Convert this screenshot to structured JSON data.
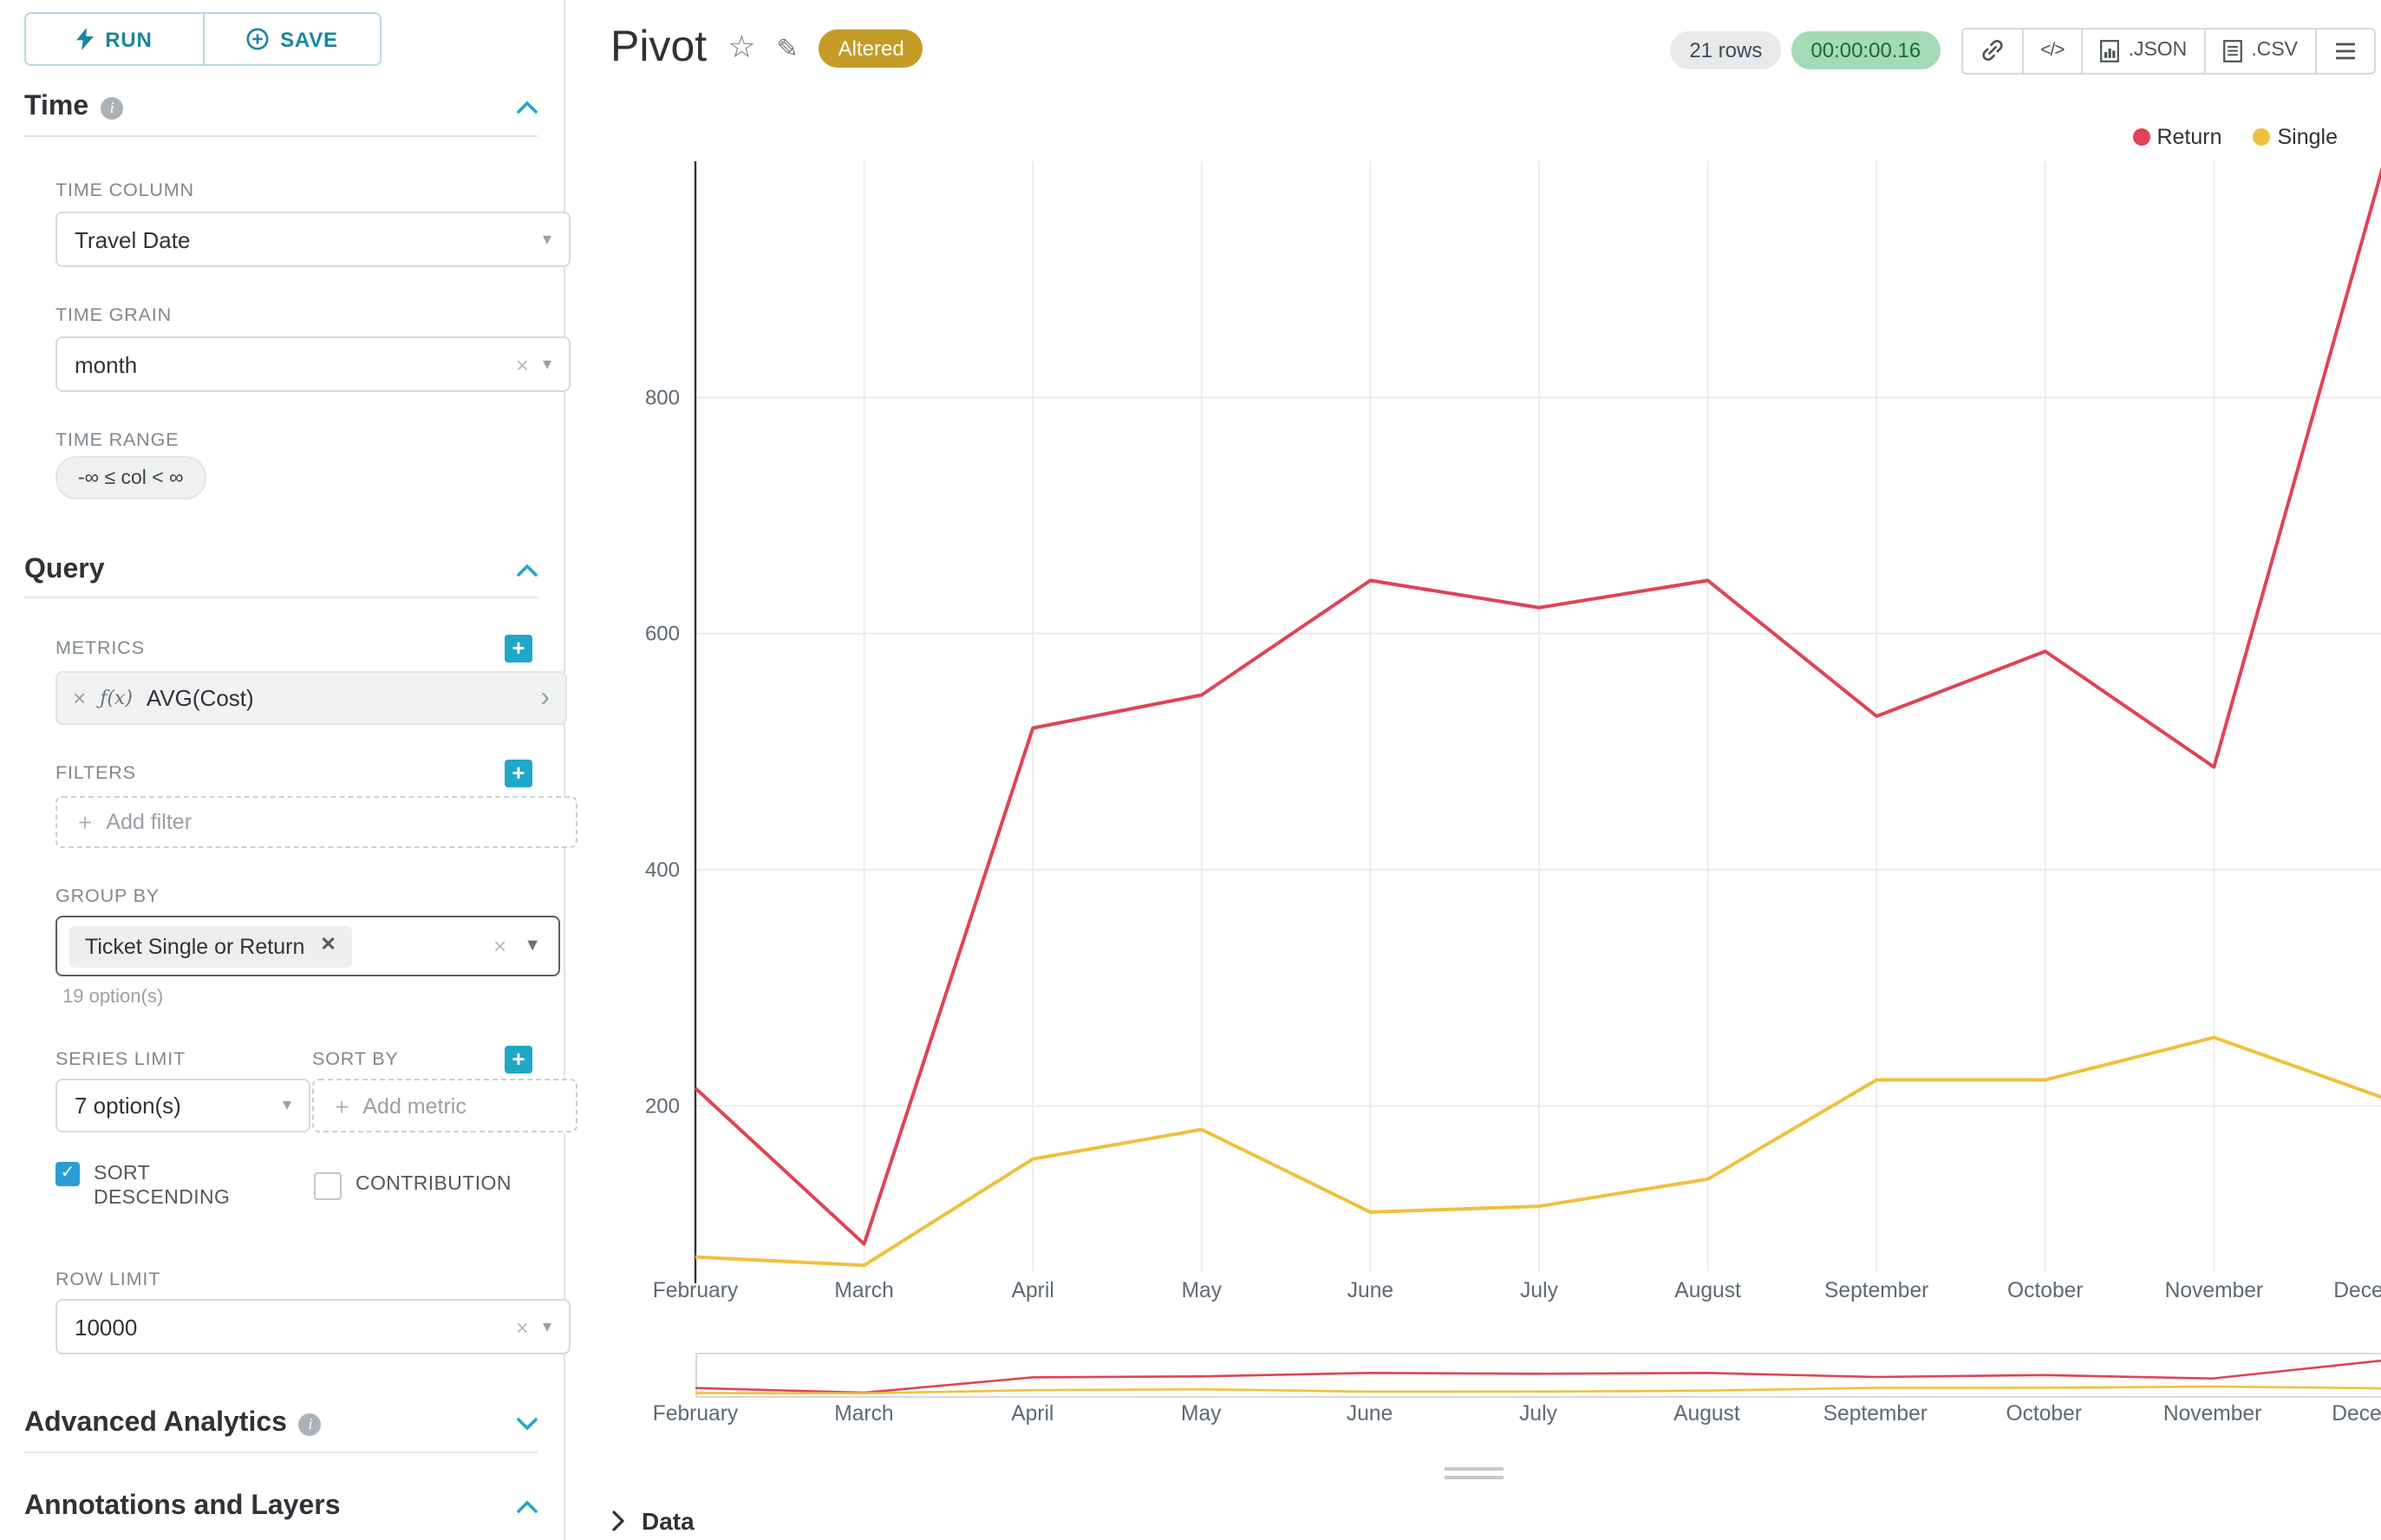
{
  "colors": {
    "accent": "#20a7c9",
    "run_save_text": "#1985a0",
    "checkbox_blue": "#2a9dd4",
    "altered_badge_bg": "#c49b26",
    "rows_badge_bg": "#e7e9ea",
    "timer_badge_bg": "#a4dab5",
    "timer_badge_text": "#156b3b",
    "series_return": "#e04355",
    "series_single": "#eec13e",
    "grid": "#ececec",
    "axis_line": "#333333"
  },
  "toolbar": {
    "run": "RUN",
    "save": "SAVE"
  },
  "sidebar": {
    "time": {
      "title": "Time",
      "column_label": "TIME COLUMN",
      "column_value": "Travel Date",
      "grain_label": "TIME GRAIN",
      "grain_value": "month",
      "range_label": "TIME RANGE",
      "range_value": "-∞ ≤ col < ∞"
    },
    "query": {
      "title": "Query",
      "metrics_label": "METRICS",
      "metric_fx": "ƒ(x)",
      "metric_name": "AVG(Cost)",
      "filters_label": "FILTERS",
      "add_filter_placeholder": "Add filter",
      "group_by_label": "GROUP BY",
      "group_by_value": "Ticket Single or Return",
      "group_by_options_hint": "19 option(s)",
      "series_limit_label": "SERIES LIMIT",
      "series_limit_value": "7 option(s)",
      "sort_by_label": "SORT BY",
      "add_metric_placeholder": "Add metric",
      "sort_descending_label": "SORT DESCENDING",
      "contribution_label": "CONTRIBUTION",
      "row_limit_label": "ROW LIMIT",
      "row_limit_value": "10000"
    },
    "advanced": {
      "title": "Advanced Analytics"
    },
    "annotations": {
      "title": "Annotations and Layers"
    }
  },
  "header": {
    "title": "Pivot",
    "altered_badge": "Altered",
    "rows_badge": "21 rows",
    "timer": "00:00:00.16",
    "export_json": ".JSON",
    "export_csv": ".CSV"
  },
  "data_panel": {
    "title": "Data"
  },
  "chart_data": {
    "type": "line",
    "x": [
      "February",
      "March",
      "April",
      "May",
      "June",
      "July",
      "August",
      "September",
      "October",
      "November",
      "December"
    ],
    "series": [
      {
        "name": "Return",
        "color": "#e04355",
        "values": [
          215,
          83,
          520,
          548,
          645,
          622,
          645,
          530,
          585,
          487,
          995
        ]
      },
      {
        "name": "Single",
        "color": "#eec13e",
        "values": [
          72,
          65,
          155,
          180,
          110,
          115,
          138,
          222,
          222,
          258,
          207
        ]
      }
    ],
    "yticks": [
      200,
      400,
      600,
      800
    ],
    "ylim": [
      60,
      1000
    ],
    "grid": true,
    "legend_position": "top-right",
    "preview_strip": true
  }
}
